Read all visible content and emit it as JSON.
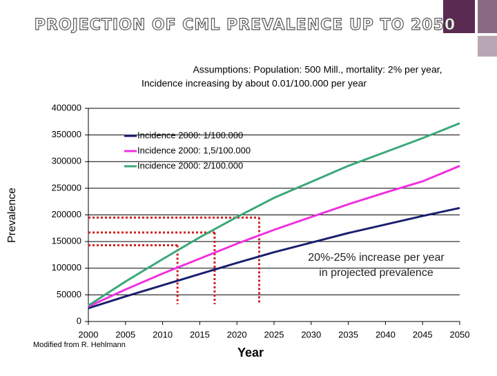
{
  "chart_data": {
    "type": "line",
    "title": "PROJECTION OF CML PREVALENCE UP TO 2050",
    "subtitle": [
      "Assumptions: Population: 500 Mill., mortality: 2% per year,",
      "Incidence increasing by about 0.01/100.000 per year"
    ],
    "x_label": "Year",
    "y_label": "Prevalence",
    "x": [
      2000,
      2005,
      2010,
      2015,
      2020,
      2025,
      2030,
      2035,
      2040,
      2045,
      2050
    ],
    "series": [
      {
        "name": "Incidence 2000: 1/100.000",
        "color": "#1a1f6e",
        "values": [
          25000,
          47000,
          68000,
          89000,
          110000,
          130000,
          148000,
          166000,
          182000,
          198000,
          213000
        ]
      },
      {
        "name": "Incidence 2000: 1,5/100.000",
        "color": "#f030e0",
        "values": [
          28000,
          60000,
          90000,
          118000,
          146000,
          172000,
          196000,
          220000,
          242000,
          263000,
          292000
        ]
      },
      {
        "name": "Incidence 2000: 2/100.000",
        "color": "#3aa878",
        "values": [
          30000,
          75000,
          117000,
          158000,
          196000,
          232000,
          262000,
          292000,
          318000,
          344000,
          372000
        ]
      }
    ],
    "guides": [
      {
        "x": 2012,
        "y": 143000
      },
      {
        "x": 2017,
        "y": 167000
      },
      {
        "x": 2023,
        "y": 195000
      }
    ],
    "guide_color": "#d02020",
    "annotation": [
      "20%-25% increase per year",
      "in projected prevalence"
    ],
    "source": "Modified from R. Hehlmann",
    "xlim": [
      2000,
      2050
    ],
    "xticks": [
      2000,
      2005,
      2010,
      2015,
      2020,
      2025,
      2030,
      2035,
      2040,
      2045,
      2050
    ],
    "ylim": [
      0,
      400000
    ],
    "yticks": [
      0,
      50000,
      100000,
      150000,
      200000,
      250000,
      300000,
      350000,
      400000
    ],
    "grid": true
  }
}
